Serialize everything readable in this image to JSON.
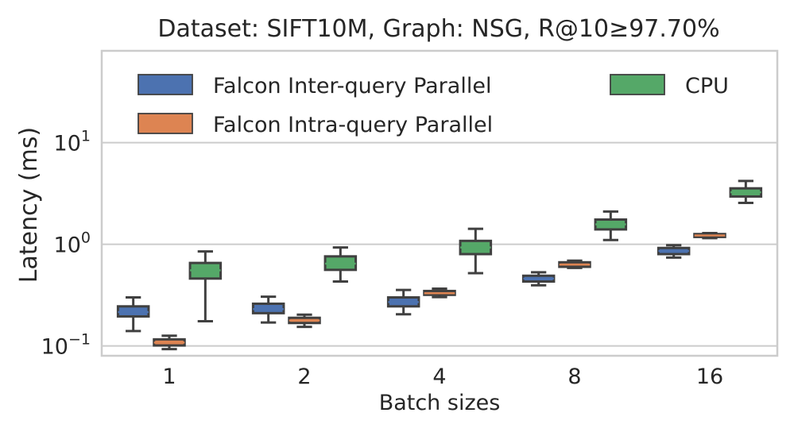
{
  "chart_data": {
    "type": "boxplot",
    "title": "Dataset: SIFT10M, Graph: NSG, R@10≥97.70%",
    "xlabel": "Batch sizes",
    "ylabel": "Latency (ms)",
    "yscale": "log",
    "ylim": [
      0.08,
      80
    ],
    "yticks": [
      {
        "value": 0.1,
        "base": "10",
        "exp": "−1"
      },
      {
        "value": 1,
        "base": "10",
        "exp": "0"
      },
      {
        "value": 10,
        "base": "10",
        "exp": "1"
      }
    ],
    "grid": "horizontal",
    "legend_position": "top",
    "categories": [
      "1",
      "2",
      "4",
      "8",
      "16"
    ],
    "series": [
      {
        "name": "Falcon Inter-query Parallel",
        "color": "#4c72b0",
        "boxes": [
          {
            "whislo": 0.14,
            "q1": 0.195,
            "med": 0.215,
            "q3": 0.245,
            "whishi": 0.3
          },
          {
            "whislo": 0.17,
            "q1": 0.21,
            "med": 0.23,
            "q3": 0.26,
            "whishi": 0.305
          },
          {
            "whislo": 0.205,
            "q1": 0.245,
            "med": 0.27,
            "q3": 0.3,
            "whishi": 0.355
          },
          {
            "whislo": 0.395,
            "q1": 0.43,
            "med": 0.46,
            "q3": 0.49,
            "whishi": 0.53
          },
          {
            "whislo": 0.74,
            "q1": 0.8,
            "med": 0.86,
            "q3": 0.92,
            "whishi": 0.98
          }
        ]
      },
      {
        "name": "Falcon Intra-query Parallel",
        "color": "#dd8452",
        "boxes": [
          {
            "whislo": 0.093,
            "q1": 0.101,
            "med": 0.108,
            "q3": 0.116,
            "whishi": 0.126
          },
          {
            "whislo": 0.154,
            "q1": 0.168,
            "med": 0.178,
            "q3": 0.189,
            "whishi": 0.203
          },
          {
            "whislo": 0.302,
            "q1": 0.318,
            "med": 0.33,
            "q3": 0.347,
            "whishi": 0.366
          },
          {
            "whislo": 0.585,
            "q1": 0.6,
            "med": 0.63,
            "q3": 0.665,
            "whishi": 0.69
          },
          {
            "whislo": 1.15,
            "q1": 1.18,
            "med": 1.22,
            "q3": 1.26,
            "whishi": 1.29
          }
        ]
      },
      {
        "name": "CPU",
        "color": "#55a868",
        "boxes": [
          {
            "whislo": 0.175,
            "q1": 0.46,
            "med": 0.555,
            "q3": 0.655,
            "whishi": 0.85
          },
          {
            "whislo": 0.43,
            "q1": 0.56,
            "med": 0.645,
            "q3": 0.76,
            "whishi": 0.93
          },
          {
            "whislo": 0.52,
            "q1": 0.8,
            "med": 0.93,
            "q3": 1.08,
            "whishi": 1.42
          },
          {
            "whislo": 1.1,
            "q1": 1.4,
            "med": 1.57,
            "q3": 1.75,
            "whishi": 2.1
          },
          {
            "whislo": 2.55,
            "q1": 2.95,
            "med": 3.25,
            "q3": 3.55,
            "whishi": 4.2
          }
        ]
      }
    ]
  }
}
